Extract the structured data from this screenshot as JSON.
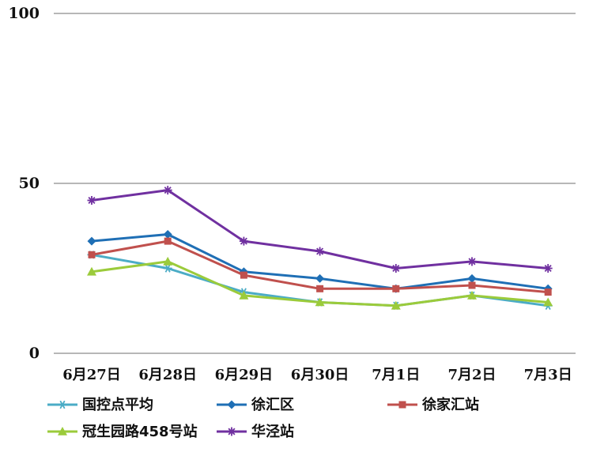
{
  "chart_data": {
    "type": "line",
    "categories": [
      "6月27日",
      "6月28日",
      "6月29日",
      "6月30日",
      "7月1日",
      "7月2日",
      "7月3日"
    ],
    "yticks": [
      0,
      50,
      100
    ],
    "ylim": [
      0,
      100
    ],
    "grid": true,
    "legend_position": "bottom",
    "series": [
      {
        "name": "国控点平均",
        "color": "#4BACC6",
        "marker": "asterisk",
        "values": [
          29,
          25,
          18,
          15,
          14,
          17,
          14
        ]
      },
      {
        "name": "徐汇区",
        "color": "#1F6FB5",
        "marker": "diamond",
        "values": [
          33,
          35,
          24,
          22,
          19,
          22,
          19
        ]
      },
      {
        "name": "徐家汇站",
        "color": "#C0504D",
        "marker": "square",
        "values": [
          29,
          33,
          23,
          19,
          19,
          20,
          18
        ]
      },
      {
        "name": "冠生园路458号站",
        "color": "#9BCB3B",
        "marker": "triangle",
        "values": [
          24,
          27,
          17,
          15,
          14,
          17,
          15
        ]
      },
      {
        "name": "华泾站",
        "color": "#7030A0",
        "marker": "star",
        "values": [
          45,
          48,
          33,
          30,
          25,
          27,
          25
        ]
      }
    ]
  }
}
